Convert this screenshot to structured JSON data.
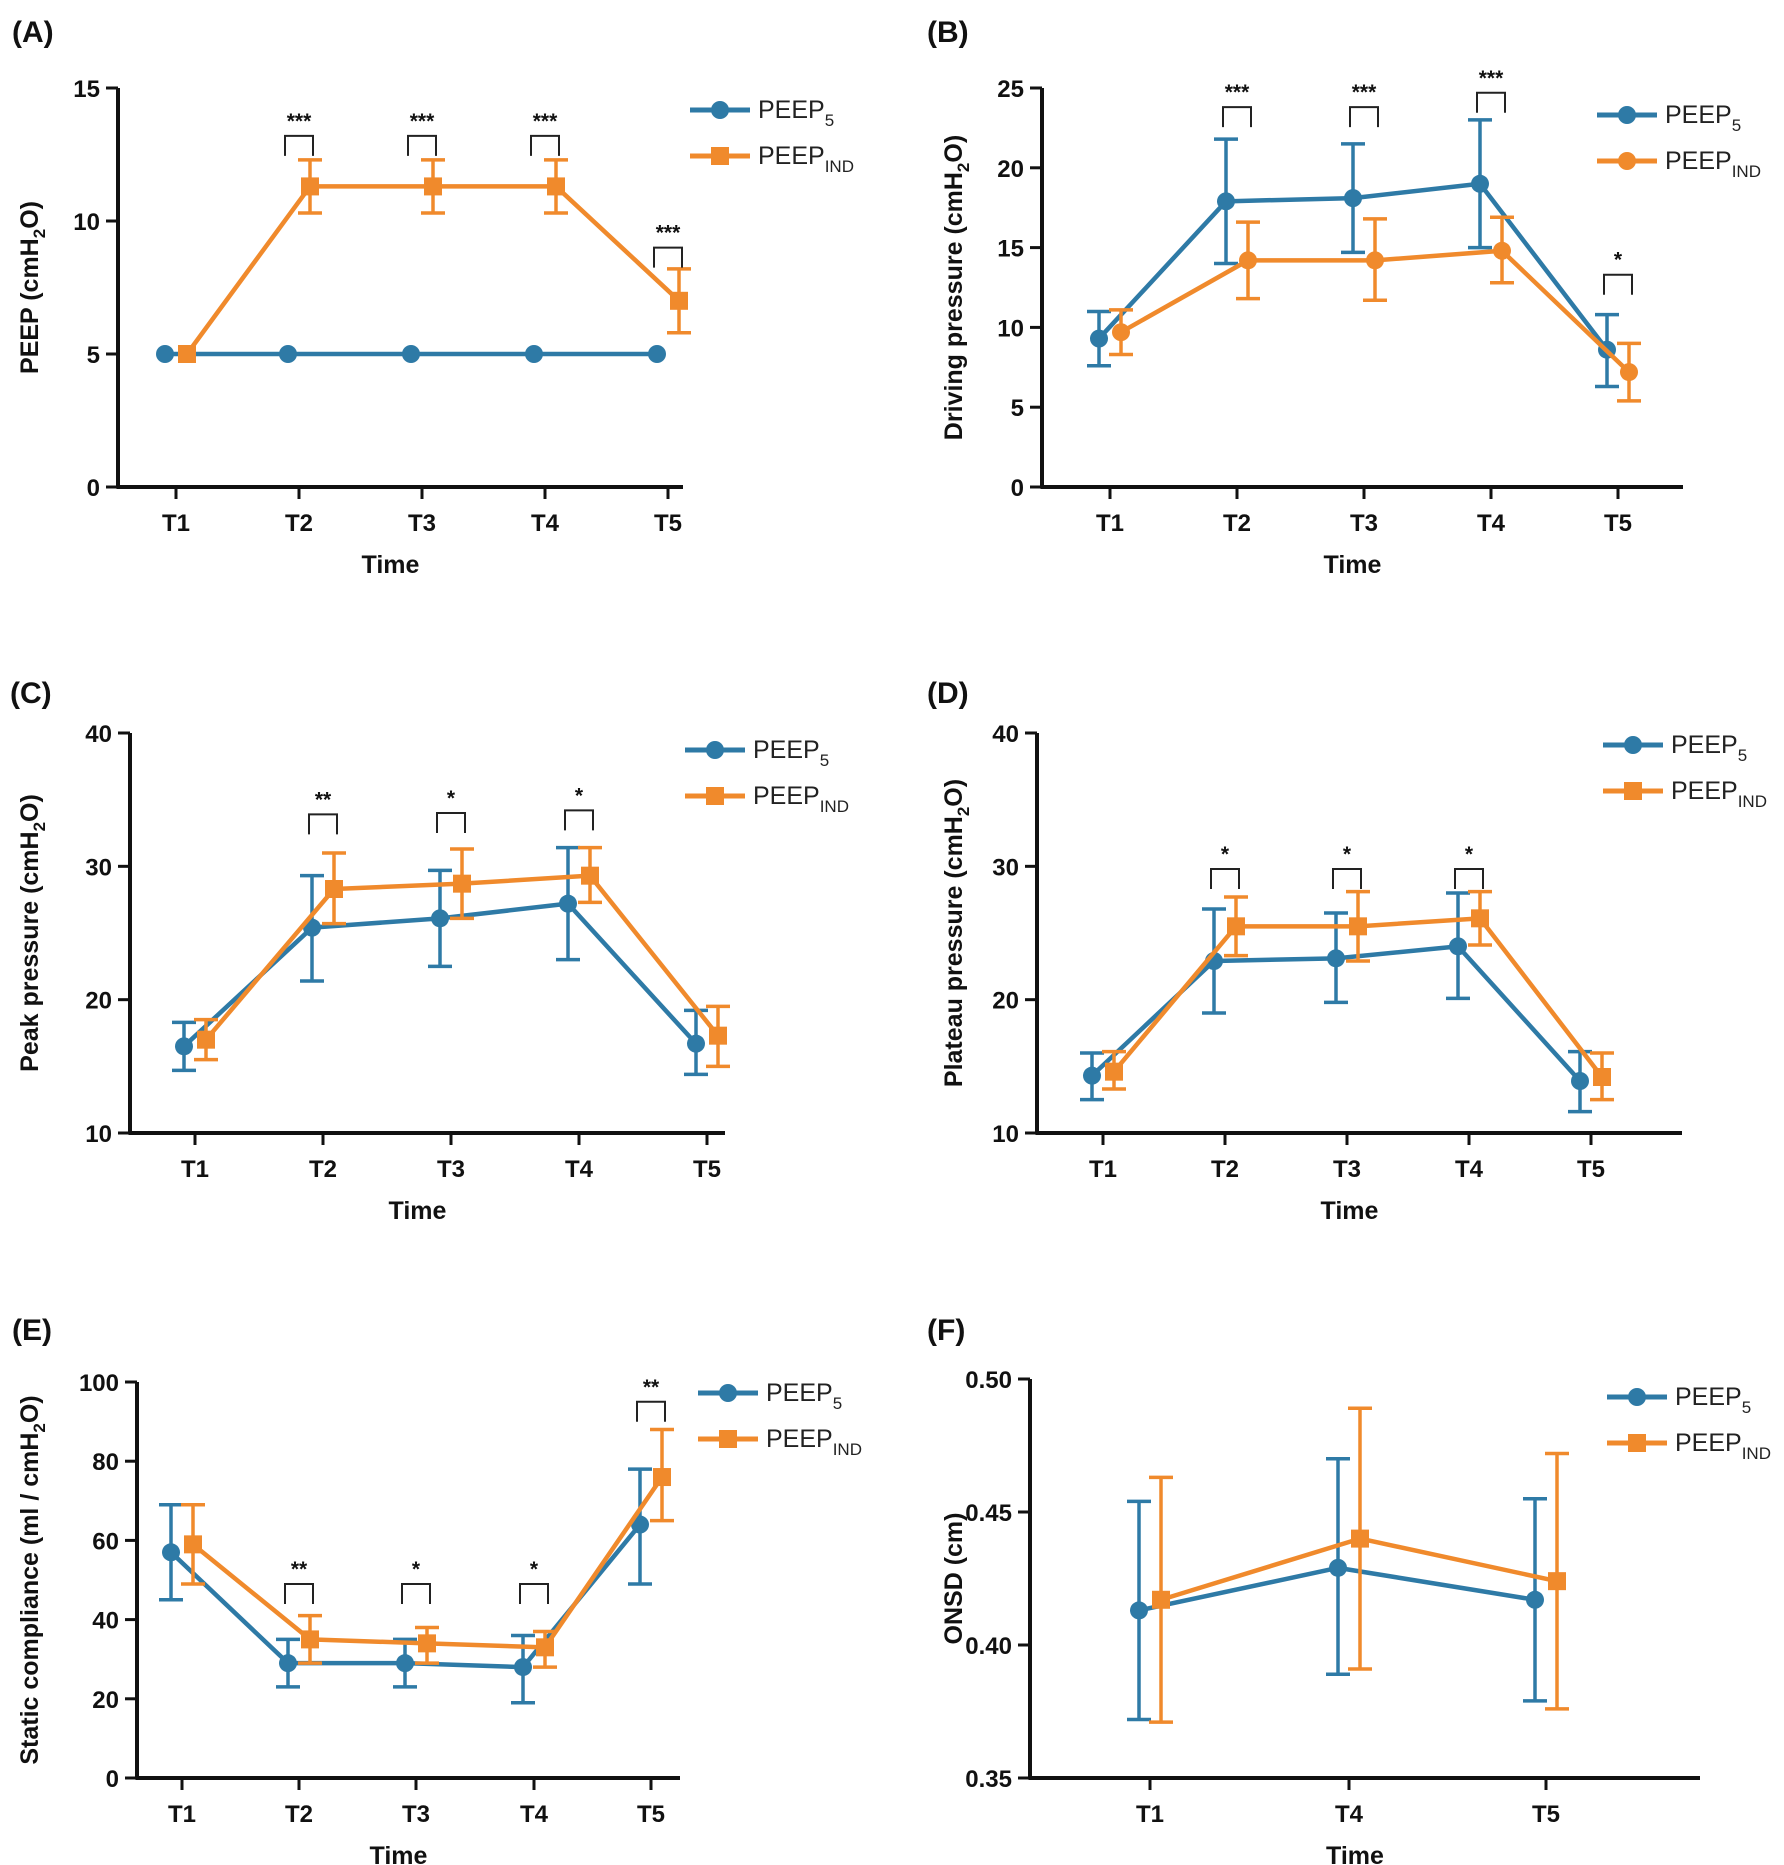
{
  "colors": {
    "series_a": "#2e7aa6",
    "series_b": "#f08a2c",
    "axis": "#111111"
  },
  "chart_data": [
    {
      "panel": "(A)",
      "type": "line",
      "ylabel_main": "PEEP (cmH",
      "ylabel_sub": "2",
      "ylabel_end": "O)",
      "xlabel": "Time",
      "categories": [
        "T1",
        "T2",
        "T3",
        "T4",
        "T5"
      ],
      "ylim": [
        0,
        15
      ],
      "yticks": [
        0,
        5,
        10,
        15
      ],
      "ytick_labels": [
        "0",
        "5",
        "10",
        "15"
      ],
      "grid": false,
      "legend_position": "top-right",
      "series": [
        {
          "name": "PEEP",
          "sub": "5",
          "marker": "circle",
          "values": [
            5,
            5,
            5,
            5,
            5
          ],
          "err_low": [
            5,
            5,
            5,
            5,
            5
          ],
          "err_high": [
            5,
            5,
            5,
            5,
            5
          ]
        },
        {
          "name": "PEEP",
          "sub": "IND",
          "marker": "square",
          "values": [
            5,
            11.3,
            11.3,
            11.3,
            7.0
          ],
          "err_low": [
            5,
            10.3,
            10.3,
            10.3,
            5.8
          ],
          "err_high": [
            5,
            12.3,
            12.3,
            12.3,
            8.2
          ]
        }
      ],
      "significance": [
        {
          "category_index": 1,
          "label": "***",
          "level": 13.2
        },
        {
          "category_index": 2,
          "label": "***",
          "level": 13.2
        },
        {
          "category_index": 3,
          "label": "***",
          "level": 13.2
        },
        {
          "category_index": 4,
          "label": "***",
          "level": 9.0
        }
      ]
    },
    {
      "panel": "(B)",
      "type": "line",
      "ylabel_main": "Driving pressure (cmH",
      "ylabel_sub": "2",
      "ylabel_end": "O)",
      "xlabel": "Time",
      "categories": [
        "T1",
        "T2",
        "T3",
        "T4",
        "T5"
      ],
      "ylim": [
        0,
        25
      ],
      "yticks": [
        0,
        5,
        10,
        15,
        20,
        25
      ],
      "ytick_labels": [
        "0",
        "5",
        "10",
        "15",
        "20",
        "25"
      ],
      "grid": false,
      "legend_position": "top-right",
      "series": [
        {
          "name": "PEEP",
          "sub": "5",
          "marker": "circle",
          "values": [
            9.3,
            17.9,
            18.1,
            19.0,
            8.6
          ],
          "err_low": [
            7.6,
            14.0,
            14.7,
            15.0,
            6.3
          ],
          "err_high": [
            11.0,
            21.8,
            21.5,
            23.0,
            10.8
          ]
        },
        {
          "name": "PEEP",
          "sub": "IND",
          "marker": "circle",
          "values": [
            9.7,
            14.2,
            14.2,
            14.8,
            7.2
          ],
          "err_low": [
            8.3,
            11.8,
            11.7,
            12.8,
            5.4
          ],
          "err_high": [
            11.1,
            16.6,
            16.8,
            16.9,
            9.0
          ]
        }
      ],
      "significance": [
        {
          "category_index": 1,
          "label": "***",
          "level": 23.8
        },
        {
          "category_index": 2,
          "label": "***",
          "level": 23.8
        },
        {
          "category_index": 3,
          "label": "***",
          "level": 24.7
        },
        {
          "category_index": 4,
          "label": "*",
          "level": 13.3
        }
      ]
    },
    {
      "panel": "(C)",
      "type": "line",
      "ylabel_main": "Peak pressure (cmH",
      "ylabel_sub": "2",
      "ylabel_end": "O)",
      "xlabel": "Time",
      "categories": [
        "T1",
        "T2",
        "T3",
        "T4",
        "T5"
      ],
      "ylim": [
        10,
        40
      ],
      "yticks": [
        10,
        20,
        30,
        40
      ],
      "ytick_labels": [
        "10",
        "20",
        "30",
        "40"
      ],
      "grid": false,
      "legend_position": "top-right",
      "series": [
        {
          "name": "PEEP",
          "sub": "5",
          "marker": "circle",
          "values": [
            16.5,
            25.4,
            26.1,
            27.2,
            16.7
          ],
          "err_low": [
            14.7,
            21.4,
            22.5,
            23.0,
            14.4
          ],
          "err_high": [
            18.3,
            29.3,
            29.7,
            31.4,
            19.2
          ]
        },
        {
          "name": "PEEP",
          "sub": "IND",
          "marker": "square",
          "values": [
            17.0,
            28.3,
            28.7,
            29.3,
            17.3
          ],
          "err_low": [
            15.5,
            25.7,
            26.1,
            27.3,
            15.0
          ],
          "err_high": [
            18.5,
            31.0,
            31.3,
            31.4,
            19.5
          ]
        }
      ],
      "significance": [
        {
          "category_index": 1,
          "label": "**",
          "level": 33.9
        },
        {
          "category_index": 2,
          "label": "*",
          "level": 34.0
        },
        {
          "category_index": 3,
          "label": "*",
          "level": 34.2
        }
      ]
    },
    {
      "panel": "(D)",
      "type": "line",
      "ylabel_main": "Plateau pressure (cmH",
      "ylabel_sub": "2",
      "ylabel_end": "O)",
      "xlabel": "Time",
      "categories": [
        "T1",
        "T2",
        "T3",
        "T4",
        "T5"
      ],
      "ylim": [
        10,
        40
      ],
      "yticks": [
        10,
        20,
        30,
        40
      ],
      "ytick_labels": [
        "10",
        "20",
        "30",
        "40"
      ],
      "grid": false,
      "legend_position": "top-right",
      "series": [
        {
          "name": "PEEP",
          "sub": "5",
          "marker": "circle",
          "values": [
            14.3,
            22.9,
            23.1,
            24.0,
            13.9
          ],
          "err_low": [
            12.5,
            19.0,
            19.8,
            20.1,
            11.6
          ],
          "err_high": [
            16.0,
            26.8,
            26.5,
            28.0,
            16.1
          ]
        },
        {
          "name": "PEEP",
          "sub": "IND",
          "marker": "square",
          "values": [
            14.6,
            25.5,
            25.5,
            26.1,
            14.2
          ],
          "err_low": [
            13.3,
            23.3,
            22.9,
            24.1,
            12.5
          ],
          "err_high": [
            16.1,
            27.7,
            28.1,
            28.1,
            16.0
          ]
        }
      ],
      "significance": [
        {
          "category_index": 1,
          "label": "*",
          "level": 29.8
        },
        {
          "category_index": 2,
          "label": "*",
          "level": 29.8
        },
        {
          "category_index": 3,
          "label": "*",
          "level": 29.8
        }
      ]
    },
    {
      "panel": "(E)",
      "type": "line",
      "ylabel_main": "Static compliance (ml / cmH",
      "ylabel_sub": "2",
      "ylabel_end": "O)",
      "xlabel": "Time",
      "categories": [
        "T1",
        "T2",
        "T3",
        "T4",
        "T5"
      ],
      "ylim": [
        0,
        100
      ],
      "yticks": [
        0,
        20,
        40,
        60,
        80,
        100
      ],
      "ytick_labels": [
        "0",
        "20",
        "40",
        "60",
        "80",
        "100"
      ],
      "grid": false,
      "legend_position": "top-right",
      "series": [
        {
          "name": "PEEP",
          "sub": "5",
          "marker": "circle",
          "values": [
            57,
            29,
            29,
            28,
            64
          ],
          "err_low": [
            45,
            23,
            23,
            19,
            49
          ],
          "err_high": [
            69,
            35,
            35,
            36,
            78
          ]
        },
        {
          "name": "PEEP",
          "sub": "IND",
          "marker": "square",
          "values": [
            59,
            35,
            34,
            33,
            76
          ],
          "err_low": [
            49,
            29,
            29,
            28,
            65
          ],
          "err_high": [
            69,
            41,
            38,
            37,
            88
          ]
        }
      ],
      "significance": [
        {
          "category_index": 1,
          "label": "**",
          "level": 49
        },
        {
          "category_index": 2,
          "label": "*",
          "level": 49
        },
        {
          "category_index": 3,
          "label": "*",
          "level": 49
        },
        {
          "category_index": 4,
          "label": "**",
          "level": 95
        }
      ]
    },
    {
      "panel": "(F)",
      "type": "line",
      "ylabel_main": "ONSD (cm)",
      "ylabel_sub": "",
      "ylabel_end": "",
      "xlabel": "Time",
      "categories": [
        "T1",
        "T4",
        "T5"
      ],
      "ylim": [
        0.35,
        0.5
      ],
      "yticks": [
        0.35,
        0.4,
        0.45,
        0.5
      ],
      "ytick_labels": [
        "0.35",
        "0.40",
        "0.45",
        "0.50"
      ],
      "grid": false,
      "legend_position": "top-right",
      "series": [
        {
          "name": "PEEP",
          "sub": "5",
          "marker": "circle",
          "values": [
            0.413,
            0.429,
            0.417
          ],
          "err_low": [
            0.372,
            0.389,
            0.379
          ],
          "err_high": [
            0.454,
            0.47,
            0.455
          ]
        },
        {
          "name": "PEEP",
          "sub": "IND",
          "marker": "square",
          "values": [
            0.417,
            0.44,
            0.424
          ],
          "err_low": [
            0.371,
            0.391,
            0.376
          ],
          "err_high": [
            0.463,
            0.489,
            0.472
          ]
        }
      ],
      "significance": []
    }
  ]
}
